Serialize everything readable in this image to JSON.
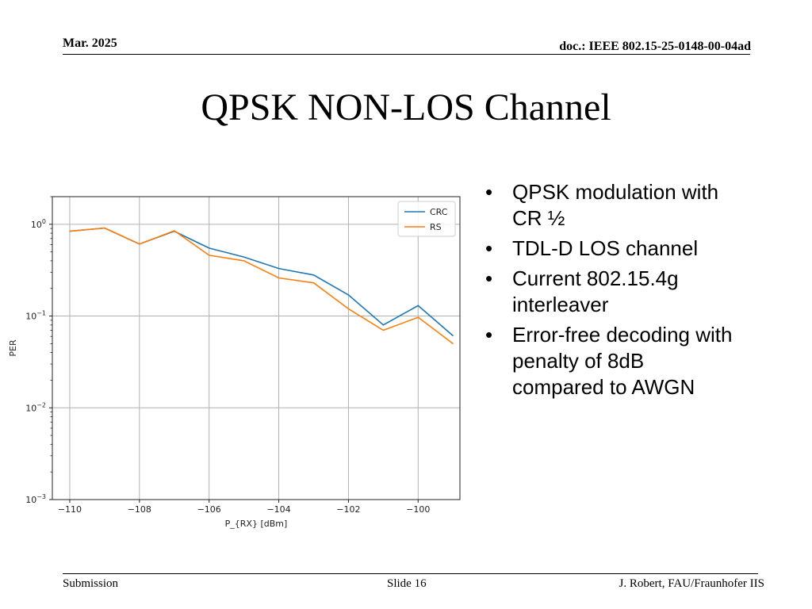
{
  "header": {
    "date": "Mar. 2025",
    "doc": "doc.: IEEE 802.15-25-0148-00-04ad"
  },
  "title": "QPSK NON-LOS Channel",
  "bullets": [
    "QPSK modulation with CR ½",
    "TDL-D LOS channel",
    "Current 802.15.4g interleaver",
    "Error-free decoding with penalty of 8dB compared to AWGN"
  ],
  "bullet_glyph": "•",
  "footer": {
    "left": "Submission",
    "center": "Slide 16",
    "right": "J. Robert, FAU/Fraunhofer IIS"
  },
  "chart_data": {
    "type": "line",
    "xlabel": "P_{RX} [dBm]",
    "ylabel": "PER",
    "yscale": "log",
    "xlim": [
      -110.5,
      -98.8
    ],
    "ylim": [
      0.001,
      2.0
    ],
    "xticks": [
      -110,
      -108,
      -106,
      -104,
      -102,
      -100
    ],
    "xtick_labels": [
      "−110",
      "−108",
      "−106",
      "−104",
      "−102",
      "−100"
    ],
    "yticks": [
      1,
      0.1,
      0.01,
      0.001
    ],
    "ytick_labels": [
      {
        "base": "10",
        "exp": "0"
      },
      {
        "base": "10",
        "exp": "−1"
      },
      {
        "base": "10",
        "exp": "−2"
      },
      {
        "base": "10",
        "exp": "−3"
      }
    ],
    "grid": true,
    "legend_position": "top-right",
    "x": [
      -110,
      -109,
      -108,
      -107,
      -106,
      -105,
      -104,
      -103,
      -102,
      -101,
      -100,
      -99
    ],
    "series": [
      {
        "name": "CRC",
        "color": "#1f77b4",
        "values": [
          0.84,
          0.91,
          0.61,
          0.84,
          0.55,
          0.44,
          0.33,
          0.28,
          0.17,
          0.08,
          0.13,
          0.061
        ]
      },
      {
        "name": "RS",
        "color": "#ff7f0e",
        "values": [
          0.84,
          0.91,
          0.61,
          0.85,
          0.46,
          0.4,
          0.26,
          0.23,
          0.12,
          0.07,
          0.097,
          0.05
        ]
      }
    ]
  }
}
